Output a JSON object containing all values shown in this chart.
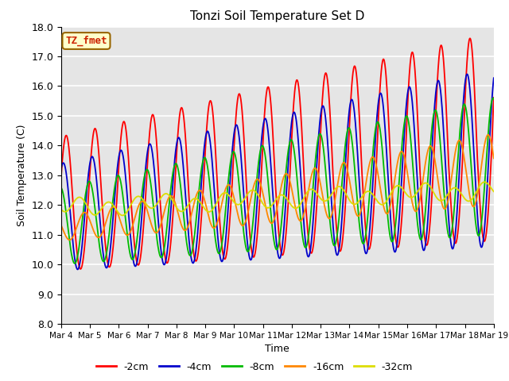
{
  "title": "Tonzi Soil Temperature Set D",
  "xlabel": "Time",
  "ylabel": "Soil Temperature (C)",
  "ylim": [
    8.0,
    18.0
  ],
  "yticks": [
    8.0,
    9.0,
    10.0,
    11.0,
    12.0,
    13.0,
    14.0,
    15.0,
    16.0,
    17.0,
    18.0
  ],
  "xtick_labels": [
    "Mar 4",
    "Mar 5",
    "Mar 6",
    "Mar 7",
    "Mar 8",
    "Mar 9",
    "Mar 10",
    "Mar 11",
    "Mar 12",
    "Mar 13",
    "Mar 14",
    "Mar 15",
    "Mar 16",
    "Mar 17",
    "Mar 18",
    "Mar 19"
  ],
  "annotation_text": "TZ_fmet",
  "annotation_bg": "#ffffcc",
  "annotation_border": "#996600",
  "legend_labels": [
    "-2cm",
    "-4cm",
    "-8cm",
    "-16cm",
    "-32cm"
  ],
  "legend_colors": [
    "#ff0000",
    "#0000cc",
    "#00bb00",
    "#ff8800",
    "#dddd00"
  ],
  "background_color": "#e5e5e5",
  "n_points": 1440,
  "days": 15
}
